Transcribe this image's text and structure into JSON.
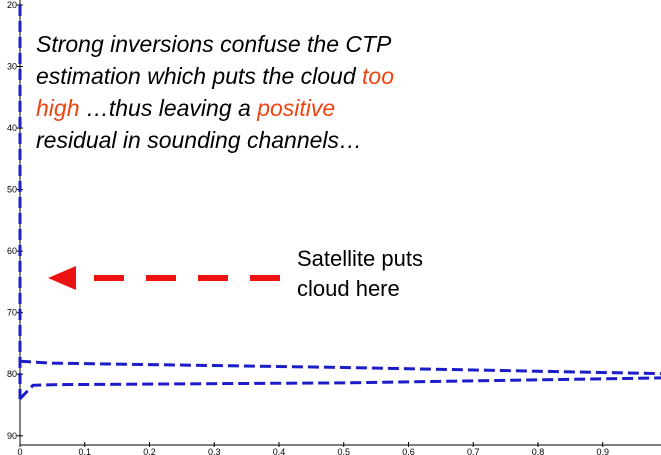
{
  "chart_data": {
    "type": "line",
    "xlim": [
      0,
      0.99
    ],
    "ylim": [
      20,
      91.5
    ],
    "xticks": [
      0,
      0.1,
      0.2,
      0.3,
      0.4,
      0.5,
      0.6,
      0.7,
      0.8,
      0.9
    ],
    "yticks": [
      20,
      30,
      40,
      50,
      60,
      70,
      80,
      90
    ],
    "series": [
      {
        "color": "#1c1cc8",
        "x": [
          0,
          0
        ],
        "values": [
          20,
          84
        ]
      },
      {
        "color": "#1c1cc8",
        "x": [
          0,
          0.05,
          0.5,
          0.99
        ],
        "values": [
          77.9,
          78.2,
          78.9,
          79.9
        ]
      },
      {
        "color": "#1c1cc8",
        "x": [
          0,
          0.02,
          0.05,
          0.5,
          0.99
        ],
        "values": [
          84,
          81.8,
          81.7,
          81.4,
          80.6
        ]
      }
    ],
    "annotation": [
      [
        {
          "text": "Strong inversions confuse the CTP",
          "color": "#000000"
        }
      ],
      [
        {
          "text": "estimation which puts the cloud ",
          "color": "#000000"
        },
        {
          "text": "too",
          "color": "#ee4411"
        }
      ],
      [
        {
          "text": "high",
          "color": "#ee4411"
        },
        {
          "text": " …thus leaving a ",
          "color": "#000000"
        },
        {
          "text": "positive",
          "color": "#ee4411"
        }
      ],
      [
        {
          "text": "residual in sounding channels…",
          "color": "#000000"
        }
      ]
    ],
    "arrow_label": [
      "Satellite puts",
      "cloud here"
    ]
  }
}
